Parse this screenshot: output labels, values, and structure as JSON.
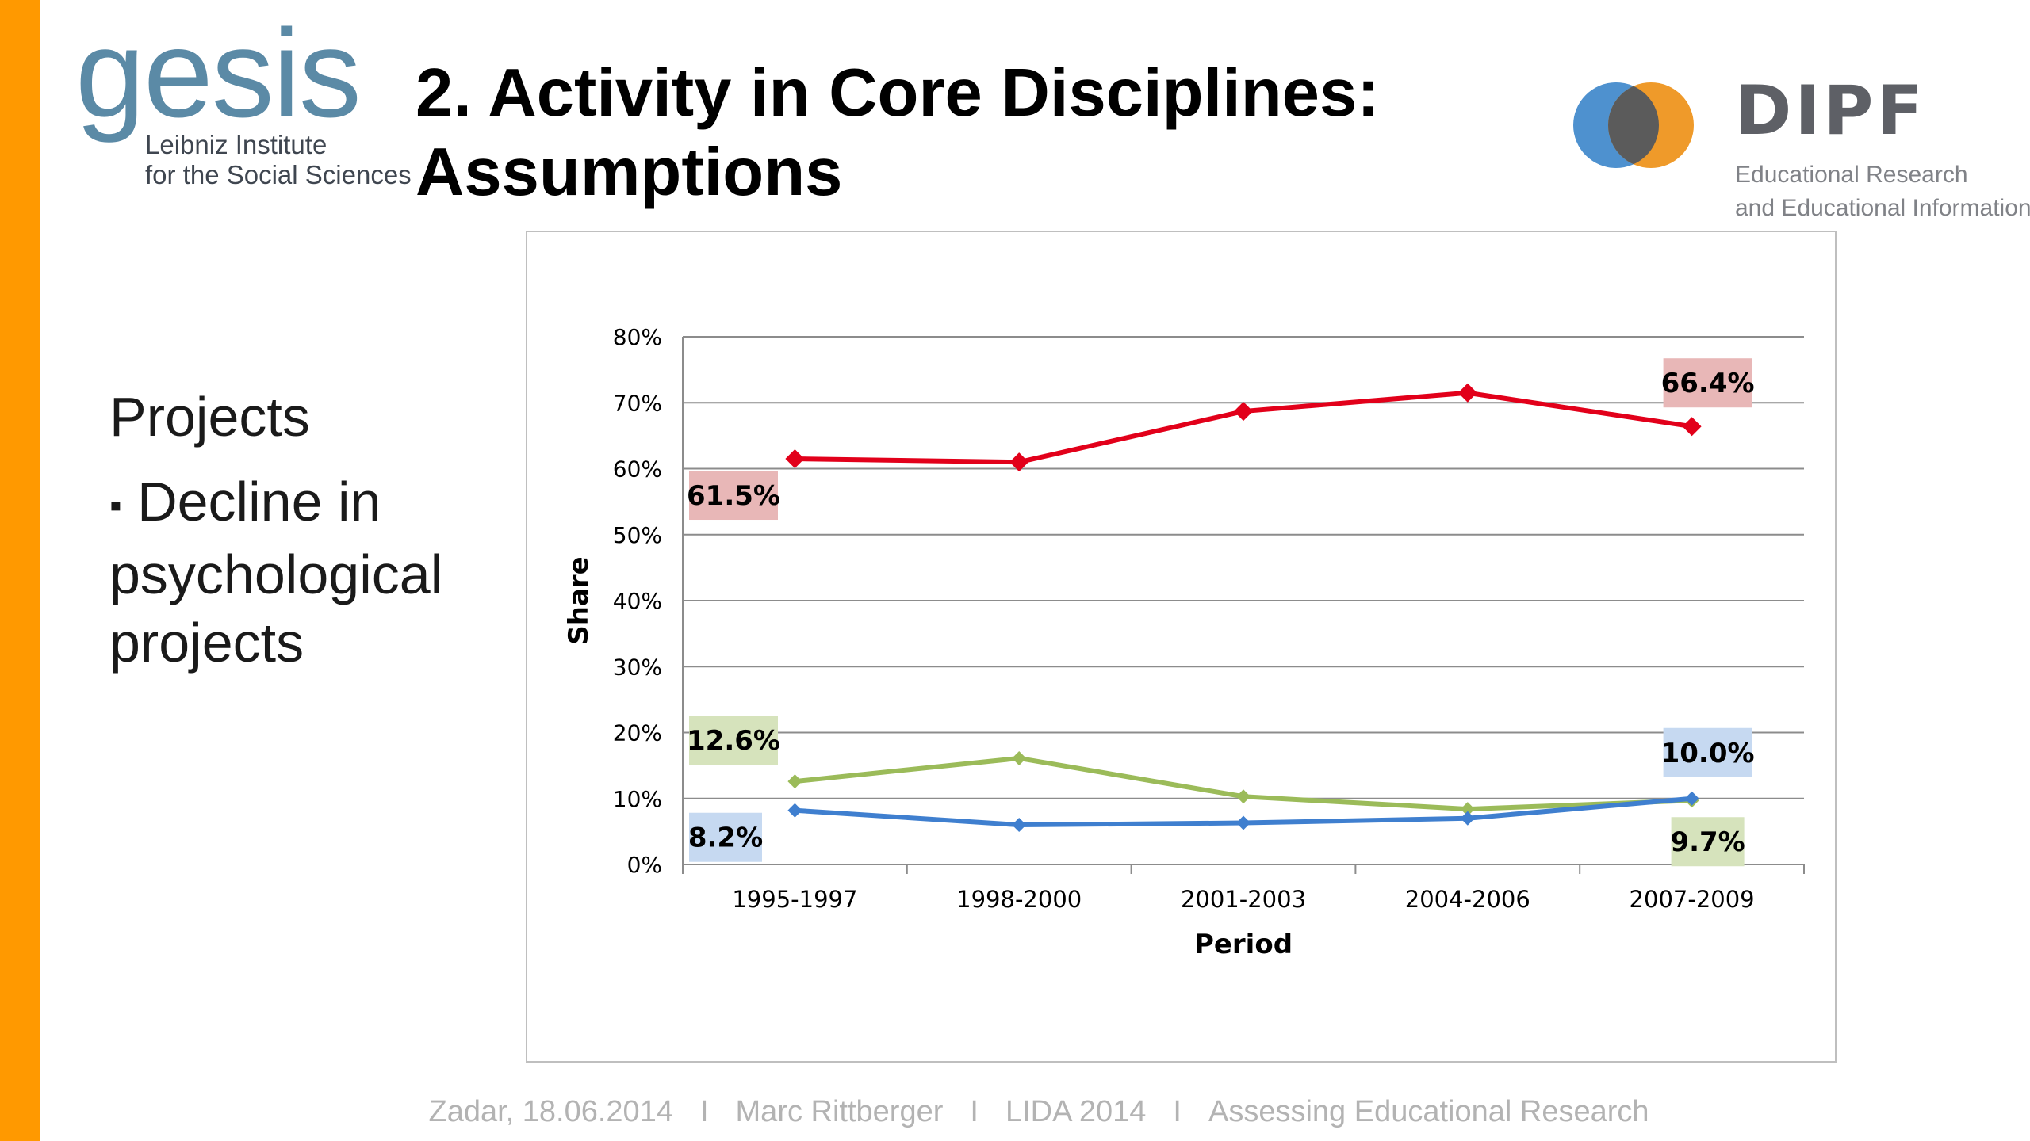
{
  "colors": {
    "accent_bar": "#ff9900",
    "gesis_blue": "#5b8aa6",
    "dipf_blue": "#4e91cf",
    "dipf_orange": "#ef9a2a",
    "dipf_overlap": "#5b5b5b"
  },
  "logos": {
    "gesis": {
      "word": "gesis",
      "line1": "Leibniz Institute",
      "line2": "for the Social Sciences"
    },
    "dipf": {
      "word": "DIPF",
      "line1": "Educational Research",
      "line2": "and Educational Information"
    }
  },
  "slide": {
    "title_line1": "2. Activity in Core Disciplines:",
    "title_line2": "Assumptions",
    "heading": "Projects",
    "bullet_marker": "▪",
    "bullet_text": "Decline in psychological projects"
  },
  "footer": {
    "place_date": "Zadar, 18.06.2014",
    "separator": "I",
    "author": "Marc Rittberger",
    "event": "LIDA 2014",
    "talk": "Assessing Educational Research"
  },
  "chart_data": {
    "type": "line",
    "categories": [
      "1995-1997",
      "1998-2000",
      "2001-2003",
      "2004-2006",
      "2007-2009"
    ],
    "xlabel": "Period",
    "ylabel": "Share",
    "ylim": [
      0,
      80
    ],
    "yticks": [
      "0%",
      "10%",
      "20%",
      "30%",
      "40%",
      "50%",
      "60%",
      "70%",
      "80%"
    ],
    "grid": true,
    "series": [
      {
        "color": "#e2001a",
        "marker": "diamond",
        "values": [
          61.5,
          61.0,
          68.7,
          71.5,
          66.4
        ]
      },
      {
        "color": "#9bbb59",
        "marker": "diamond",
        "values": [
          12.6,
          16.1,
          10.3,
          8.4,
          9.7
        ]
      },
      {
        "color": "#3f7fcf",
        "marker": "diamond",
        "values": [
          8.2,
          6.0,
          6.3,
          7.0,
          10.0
        ]
      }
    ],
    "data_labels": [
      {
        "text": "61.5%",
        "series": 0,
        "point": 0,
        "bg": "#e8b7b7"
      },
      {
        "text": "66.4%",
        "series": 0,
        "point": 4,
        "bg": "#e8b7b7"
      },
      {
        "text": "12.6%",
        "series": 1,
        "point": 0,
        "bg": "#d6e3bc"
      },
      {
        "text": "9.7%",
        "series": 1,
        "point": 4,
        "bg": "#d6e3bc"
      },
      {
        "text": "8.2%",
        "series": 2,
        "point": 0,
        "bg": "#c6d9f1"
      },
      {
        "text": "10.0%",
        "series": 2,
        "point": 4,
        "bg": "#c6d9f1"
      }
    ]
  }
}
